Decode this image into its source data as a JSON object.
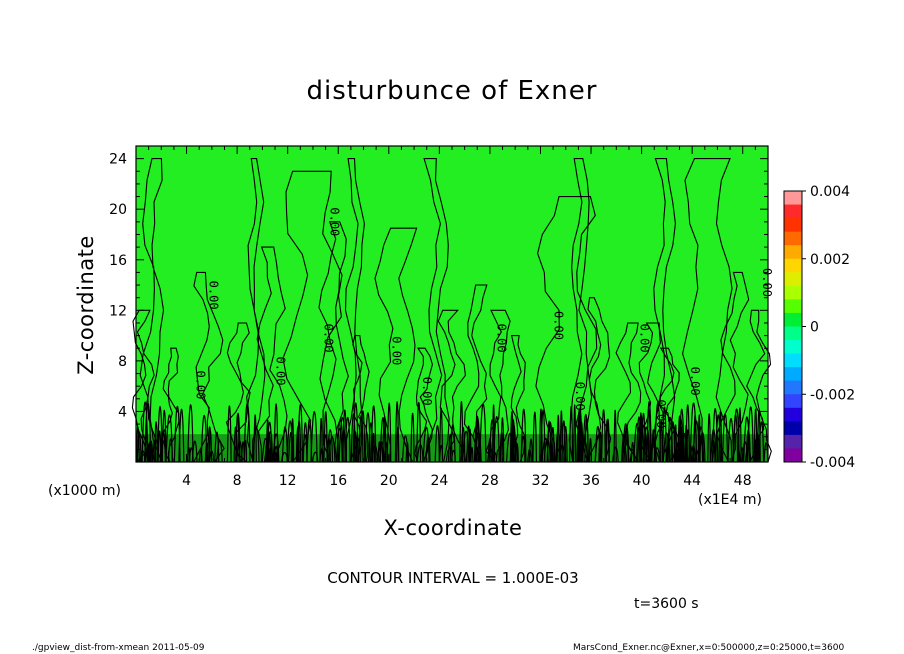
{
  "chart_data": {
    "type": "heatmap",
    "title": "disturbunce of Exner",
    "xlabel": "X-coordinate",
    "ylabel": "Z-coordinate",
    "x_unit_note": "(x1000 m)",
    "x_unit_note_right": "(x1E4 m)",
    "xlim": [
      0,
      50
    ],
    "ylim": [
      0,
      25
    ],
    "x_ticks": [
      4,
      8,
      12,
      16,
      20,
      24,
      28,
      32,
      36,
      40,
      44,
      48
    ],
    "y_ticks": [
      4,
      8,
      12,
      16,
      20,
      24
    ],
    "contour_labels": [
      {
        "x": 15.4,
        "y": 19.0,
        "text": "0.00"
      },
      {
        "x": 5.8,
        "y": 13.2,
        "text": "0.00"
      },
      {
        "x": 14.9,
        "y": 9.8,
        "text": "0.00"
      },
      {
        "x": 20.3,
        "y": 8.8,
        "text": "0.00"
      },
      {
        "x": 28.6,
        "y": 9.8,
        "text": "0.00"
      },
      {
        "x": 33.1,
        "y": 10.8,
        "text": "0.00"
      },
      {
        "x": 39.9,
        "y": 9.8,
        "text": "0.00"
      },
      {
        "x": 49.6,
        "y": 14.2,
        "text": "0.00"
      },
      {
        "x": 4.8,
        "y": 6.1,
        "text": "0.00"
      },
      {
        "x": 11.1,
        "y": 7.2,
        "text": "0.00"
      },
      {
        "x": 22.7,
        "y": 5.6,
        "text": "0.00"
      },
      {
        "x": 34.8,
        "y": 5.2,
        "text": "0.00"
      },
      {
        "x": 43.9,
        "y": 6.4,
        "text": "0.00"
      },
      {
        "x": 41.2,
        "y": 3.8,
        "text": "0.00"
      }
    ],
    "colorbar": {
      "range": [
        -0.004,
        0.004
      ],
      "tick_labels": [
        "0.004",
        "0.002",
        "0",
        "-0.002",
        "-0.004"
      ],
      "colors": [
        "#ff9999",
        "#ff2a2a",
        "#ff3300",
        "#ff6a00",
        "#ffaa00",
        "#ffd700",
        "#ddee00",
        "#aaff00",
        "#55ff00",
        "#00ee33",
        "#00ff88",
        "#00ffcc",
        "#00ddff",
        "#00aaff",
        "#2277ff",
        "#3344ff",
        "#2200dd",
        "#0000aa",
        "#5522aa",
        "#8000a0"
      ]
    },
    "dominant_color": "#22ee22",
    "contour_interval_text": "CONTOUR INTERVAL = 1.000E-03",
    "time_text": "t=3600 s"
  },
  "footer": {
    "left": "./gpview_dist-from-xmean  2011-05-09",
    "right": "MarsCond_Exner.nc@Exner,x=0:500000,z=0:25000,t=3600"
  }
}
